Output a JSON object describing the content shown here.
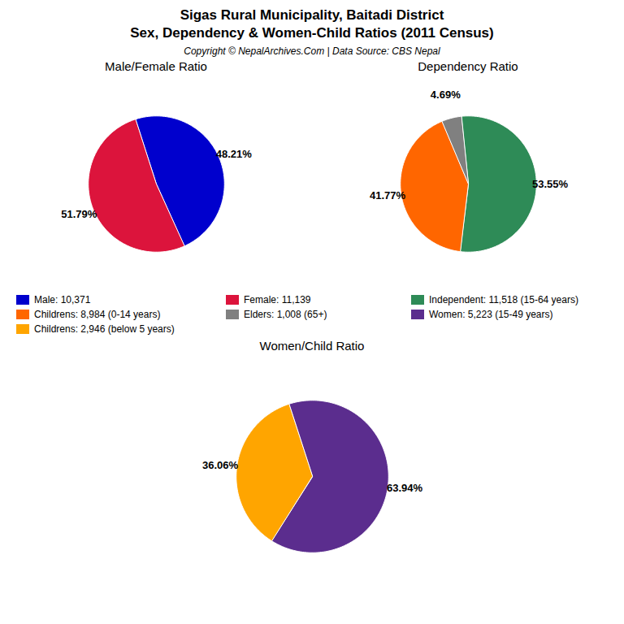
{
  "title": "Sigas Rural Municipality, Baitadi District",
  "subtitle": "Sex, Dependency & Women-Child Ratios (2011 Census)",
  "caption": "Copyright © NepalArchives.Com | Data Source: CBS Nepal",
  "chart_data": [
    {
      "type": "pie",
      "title": "Male/Female Ratio",
      "categories": [
        "Male: 10,371",
        "Female: 11,139"
      ],
      "values": [
        48.21,
        51.79
      ],
      "value_labels": [
        "48.21%",
        "51.79%"
      ],
      "colors": [
        "#0000CD",
        "#DC143C"
      ],
      "data_labels": true
    },
    {
      "type": "pie",
      "title": "Dependency Ratio",
      "categories": [
        "Independent: 11,518 (15-64 years)",
        "Childrens: 8,984 (0-14 years)",
        "Elders: 1,008 (65+)"
      ],
      "values": [
        53.55,
        41.77,
        4.69
      ],
      "value_labels": [
        "53.55%",
        "41.77%",
        "4.69%"
      ],
      "colors": [
        "#2E8B57",
        "#FF6600",
        "#808080"
      ],
      "data_labels": true
    },
    {
      "type": "pie",
      "title": "Women/Child Ratio",
      "categories": [
        "Women: 5,223 (15-49 years)",
        "Childrens: 2,946 (below 5 years)"
      ],
      "values": [
        63.94,
        36.06
      ],
      "value_labels": [
        "63.94%",
        "36.06%"
      ],
      "colors": [
        "#5B2D8E",
        "#FFA500"
      ],
      "data_labels": true
    }
  ]
}
